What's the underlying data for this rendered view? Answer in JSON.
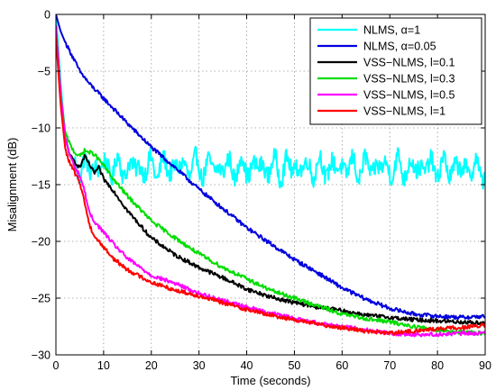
{
  "chart_data": {
    "type": "line",
    "title": "",
    "xlabel": "Time (seconds)",
    "ylabel": "Misalignment (dB)",
    "xlim": [
      0,
      90
    ],
    "ylim": [
      -30,
      0
    ],
    "xticks": [
      0,
      10,
      20,
      30,
      40,
      50,
      60,
      70,
      80,
      90
    ],
    "yticks": [
      0,
      -5,
      -10,
      -15,
      -20,
      -25,
      -30
    ],
    "grid": true,
    "legend_position": "top-right",
    "series": [
      {
        "name": "NLMS, α=1",
        "color": "#00ffff",
        "noisy": true,
        "x": [
          0,
          0.5,
          1,
          2,
          3,
          4,
          5,
          6,
          8,
          10,
          12,
          15,
          20,
          25,
          30,
          40,
          50,
          60,
          70,
          80,
          90
        ],
        "y": [
          0,
          -3,
          -6,
          -11,
          -12.5,
          -13,
          -13.5,
          -13.5,
          -13.5,
          -13.5,
          -13.5,
          -13.5,
          -13.5,
          -13.5,
          -13.5,
          -13.5,
          -13.5,
          -13.5,
          -13.5,
          -13.5,
          -13.7
        ]
      },
      {
        "name": "NLMS, α=0.05",
        "color": "#0000dd",
        "noisy": false,
        "x": [
          0,
          1,
          2,
          3,
          5,
          7,
          10,
          15,
          20,
          25,
          30,
          35,
          40,
          45,
          50,
          55,
          60,
          65,
          70,
          75,
          80,
          85,
          90
        ],
        "y": [
          0,
          -1.5,
          -2.5,
          -3.3,
          -5,
          -6.1,
          -7.4,
          -9.6,
          -11.7,
          -13.5,
          -15.4,
          -17.1,
          -18.8,
          -20.2,
          -21.6,
          -22.8,
          -24.1,
          -25.1,
          -25.9,
          -26.4,
          -26.6,
          -26.7,
          -26.6
        ]
      },
      {
        "name": "VSS−NLMS, l=0.1",
        "color": "#000000",
        "noisy": false,
        "x": [
          0,
          0.5,
          1,
          1.5,
          2,
          3,
          4,
          5,
          6,
          7,
          8,
          9,
          10,
          12,
          15,
          20,
          25,
          30,
          35,
          40,
          45,
          50,
          55,
          60,
          65,
          70,
          75,
          80,
          85,
          90
        ],
        "y": [
          -1,
          -4,
          -7,
          -9.5,
          -11,
          -12.5,
          -13,
          -13.5,
          -12.5,
          -13.2,
          -14,
          -13.5,
          -14.5,
          -15.5,
          -17.3,
          -19.7,
          -21.2,
          -22.3,
          -23.2,
          -24.2,
          -24.9,
          -25.4,
          -25.8,
          -26.1,
          -26.5,
          -26.7,
          -26.9,
          -27,
          -27.1,
          -27.2
        ]
      },
      {
        "name": "VSS−NLMS, l=0.3",
        "color": "#00dd00",
        "noisy": false,
        "x": [
          0,
          0.5,
          1,
          2,
          3,
          4,
          5,
          6,
          8,
          10,
          12,
          15,
          20,
          25,
          30,
          35,
          40,
          45,
          50,
          55,
          60,
          65,
          70,
          75,
          80,
          85,
          90
        ],
        "y": [
          -1,
          -4,
          -7,
          -10.5,
          -11.5,
          -12.2,
          -12.5,
          -12,
          -12.3,
          -13.3,
          -14.5,
          -16,
          -18.2,
          -19.7,
          -21.1,
          -22.3,
          -23.3,
          -24.3,
          -25,
          -25.7,
          -26.4,
          -26.8,
          -27.1,
          -27.5,
          -27.8,
          -28,
          -28.1
        ]
      },
      {
        "name": "VSS−NLMS, l=0.5",
        "color": "#ff00ff",
        "noisy": false,
        "x": [
          0,
          0.5,
          1,
          2,
          3,
          4,
          5,
          6,
          7,
          8,
          10,
          12,
          15,
          20,
          25,
          30,
          35,
          40,
          45,
          50,
          55,
          60,
          65,
          70,
          75,
          80,
          85,
          90
        ],
        "y": [
          -1,
          -4,
          -7,
          -11,
          -12.5,
          -13.5,
          -14.2,
          -15.5,
          -17.5,
          -18.2,
          -19.2,
          -20.2,
          -21.5,
          -23,
          -23.7,
          -24.6,
          -25.2,
          -25.8,
          -26.3,
          -26.8,
          -27.2,
          -27.5,
          -27.8,
          -28.1,
          -28.2,
          -28.2,
          -28.1,
          -28.1
        ]
      },
      {
        "name": "VSS−NLMS, l=1",
        "color": "#ff0000",
        "noisy": false,
        "x": [
          0,
          0.5,
          1,
          2,
          3,
          4,
          5,
          6,
          7,
          8,
          9,
          10,
          12,
          15,
          20,
          25,
          30,
          35,
          40,
          45,
          50,
          55,
          60,
          65,
          70,
          75,
          80,
          85,
          90
        ],
        "y": [
          -2,
          -5,
          -8,
          -12,
          -13.2,
          -14,
          -14.8,
          -16.5,
          -18.5,
          -19.5,
          -20,
          -20.5,
          -21.5,
          -22.5,
          -23.6,
          -24.3,
          -24.8,
          -25.4,
          -26,
          -26.5,
          -26.9,
          -27.3,
          -27.6,
          -27.9,
          -28.1,
          -27.9,
          -27.7,
          -27.6,
          -27.4
        ]
      }
    ]
  }
}
